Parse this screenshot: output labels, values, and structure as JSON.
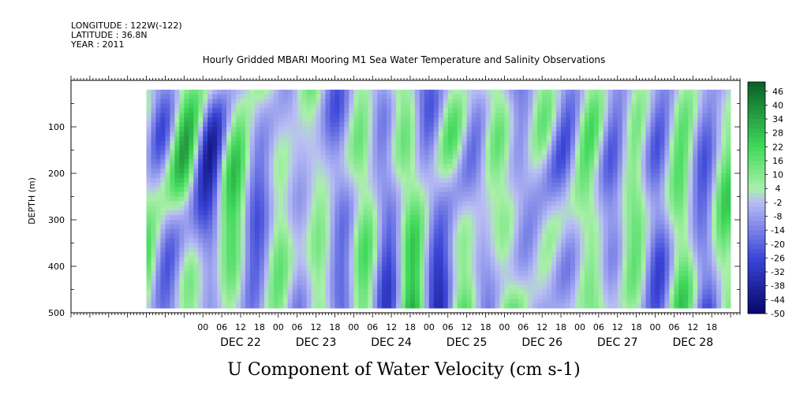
{
  "header": {
    "longitude": "LONGITUDE : 122W(-122)",
    "latitude": "LATITUDE : 36.8N",
    "year": "YEAR : 2011"
  },
  "chart_data": {
    "type": "heatmap",
    "title": "Hourly Gridded MBARI Mooring M1 Sea Water Temperature and Salinity Observations",
    "bottom_title": "U Component of Water Velocity (cm s-1)",
    "ylabel": "DEPTH (m)",
    "y_inverted": true,
    "ylim": [
      500,
      0
    ],
    "yticks": [
      100,
      200,
      300,
      400,
      500
    ],
    "data_depth_range": [
      20,
      485
    ],
    "xlim_hours": [
      -42,
      171
    ],
    "data_hour_range": [
      -18,
      168
    ],
    "hour_ticks": [
      "00",
      "06",
      "12",
      "18",
      "00",
      "06",
      "12",
      "18",
      "00",
      "06",
      "12",
      "18",
      "00",
      "06",
      "12",
      "18",
      "00",
      "06",
      "12",
      "18",
      "00",
      "06",
      "12",
      "18",
      "00",
      "06",
      "12",
      "18"
    ],
    "day_labels": [
      "DEC 22",
      "DEC 23",
      "DEC 24",
      "DEC 25",
      "DEC 26",
      "DEC 27",
      "DEC 28"
    ],
    "colorbar_labels": [
      "46",
      "40",
      "34",
      "28",
      "22",
      "16",
      "10",
      "4",
      "-2",
      "-8",
      "-14",
      "-20",
      "-26",
      "-32",
      "-38",
      "-44",
      "-50"
    ],
    "color_range": [
      -50,
      50
    ],
    "colors": {
      "strong_negative": "#06066a",
      "negative": "#3b46d8",
      "near_zero_negative": "#b8bdf4",
      "near_zero_positive": "#aaf0aa",
      "positive": "#3fd95a",
      "strong_positive": "#0a5e26"
    },
    "field_description": "Alternating vertical bands of negative (blue) and positive (green) velocity, values mostly between -26 and 22 cm/s"
  }
}
